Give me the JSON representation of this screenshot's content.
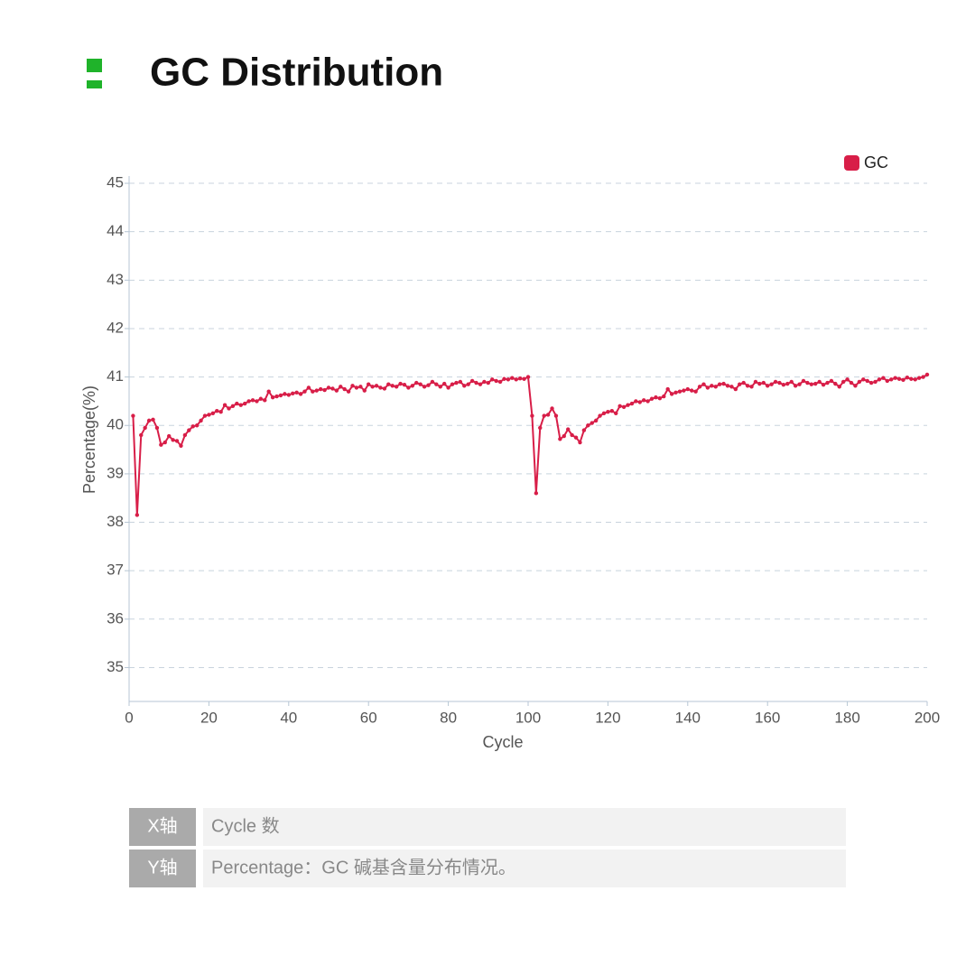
{
  "header": {
    "title": "GC Distribution"
  },
  "chart_data": {
    "type": "line",
    "x_label": "Cycle",
    "y_label": "Percentage(%)",
    "xlim": [
      0,
      200
    ],
    "ylim": [
      34.3,
      45.15
    ],
    "xticks": [
      0,
      20,
      40,
      60,
      80,
      100,
      120,
      140,
      160,
      180,
      200
    ],
    "yticks": [
      35,
      36,
      37,
      38,
      39,
      40,
      41,
      42,
      43,
      44,
      45
    ],
    "grid": true,
    "legend": "top-right",
    "x": [
      1,
      2,
      3,
      4,
      5,
      6,
      7,
      8,
      9,
      10,
      11,
      12,
      13,
      14,
      15,
      16,
      17,
      18,
      19,
      20,
      21,
      22,
      23,
      24,
      25,
      26,
      27,
      28,
      29,
      30,
      31,
      32,
      33,
      34,
      35,
      36,
      37,
      38,
      39,
      40,
      41,
      42,
      43,
      44,
      45,
      46,
      47,
      48,
      49,
      50,
      51,
      52,
      53,
      54,
      55,
      56,
      57,
      58,
      59,
      60,
      61,
      62,
      63,
      64,
      65,
      66,
      67,
      68,
      69,
      70,
      71,
      72,
      73,
      74,
      75,
      76,
      77,
      78,
      79,
      80,
      81,
      82,
      83,
      84,
      85,
      86,
      87,
      88,
      89,
      90,
      91,
      92,
      93,
      94,
      95,
      96,
      97,
      98,
      99,
      100,
      101,
      102,
      103,
      104,
      105,
      106,
      107,
      108,
      109,
      110,
      111,
      112,
      113,
      114,
      115,
      116,
      117,
      118,
      119,
      120,
      121,
      122,
      123,
      124,
      125,
      126,
      127,
      128,
      129,
      130,
      131,
      132,
      133,
      134,
      135,
      136,
      137,
      138,
      139,
      140,
      141,
      142,
      143,
      144,
      145,
      146,
      147,
      148,
      149,
      150,
      151,
      152,
      153,
      154,
      155,
      156,
      157,
      158,
      159,
      160,
      161,
      162,
      163,
      164,
      165,
      166,
      167,
      168,
      169,
      170,
      171,
      172,
      173,
      174,
      175,
      176,
      177,
      178,
      179,
      180,
      181,
      182,
      183,
      184,
      185,
      186,
      187,
      188,
      189,
      190,
      191,
      192,
      193,
      194,
      195,
      196,
      197,
      198,
      199,
      200
    ],
    "series": [
      {
        "name": "GC",
        "color": "#d81e48",
        "values": [
          40.2,
          38.15,
          39.8,
          39.95,
          40.1,
          40.12,
          39.95,
          39.6,
          39.65,
          39.78,
          39.7,
          39.68,
          39.58,
          39.8,
          39.9,
          39.98,
          40.0,
          40.1,
          40.2,
          40.22,
          40.25,
          40.3,
          40.28,
          40.42,
          40.35,
          40.4,
          40.45,
          40.42,
          40.45,
          40.5,
          40.52,
          40.5,
          40.55,
          40.52,
          40.7,
          40.58,
          40.6,
          40.62,
          40.65,
          40.63,
          40.66,
          40.68,
          40.65,
          40.7,
          40.78,
          40.7,
          40.72,
          40.75,
          40.73,
          40.78,
          40.76,
          40.72,
          40.8,
          40.75,
          40.7,
          40.82,
          40.78,
          40.8,
          40.72,
          40.85,
          40.8,
          40.82,
          40.78,
          40.76,
          40.85,
          40.82,
          40.8,
          40.86,
          40.84,
          40.78,
          40.82,
          40.88,
          40.85,
          40.8,
          40.83,
          40.9,
          40.85,
          40.8,
          40.86,
          40.78,
          40.85,
          40.88,
          40.9,
          40.82,
          40.85,
          40.92,
          40.88,
          40.85,
          40.9,
          40.88,
          40.95,
          40.92,
          40.9,
          40.96,
          40.95,
          40.98,
          40.95,
          40.97,
          40.96,
          41.0,
          40.2,
          38.6,
          39.95,
          40.2,
          40.22,
          40.35,
          40.2,
          39.72,
          39.78,
          39.92,
          39.8,
          39.75,
          39.65,
          39.9,
          40.0,
          40.05,
          40.1,
          40.2,
          40.25,
          40.28,
          40.3,
          40.25,
          40.4,
          40.38,
          40.42,
          40.45,
          40.5,
          40.48,
          40.52,
          40.5,
          40.55,
          40.58,
          40.56,
          40.6,
          40.75,
          40.65,
          40.68,
          40.7,
          40.72,
          40.75,
          40.72,
          40.7,
          40.8,
          40.85,
          40.78,
          40.82,
          40.8,
          40.85,
          40.86,
          40.82,
          40.8,
          40.75,
          40.85,
          40.88,
          40.82,
          40.8,
          40.9,
          40.86,
          40.88,
          40.82,
          40.85,
          40.9,
          40.88,
          40.84,
          40.86,
          40.9,
          40.82,
          40.85,
          40.92,
          40.88,
          40.85,
          40.86,
          40.9,
          40.84,
          40.88,
          40.92,
          40.86,
          40.8,
          40.9,
          40.95,
          40.88,
          40.82,
          40.9,
          40.95,
          40.92,
          40.88,
          40.9,
          40.95,
          40.98,
          40.92,
          40.95,
          40.98,
          40.96,
          40.94,
          40.99,
          40.96,
          40.95,
          40.98,
          41.0,
          41.05
        ]
      }
    ]
  },
  "table": {
    "rows": [
      [
        "X轴",
        "Cycle 数"
      ],
      [
        "Y轴",
        "Percentage：GC 碱基含量分布情况。"
      ]
    ]
  }
}
